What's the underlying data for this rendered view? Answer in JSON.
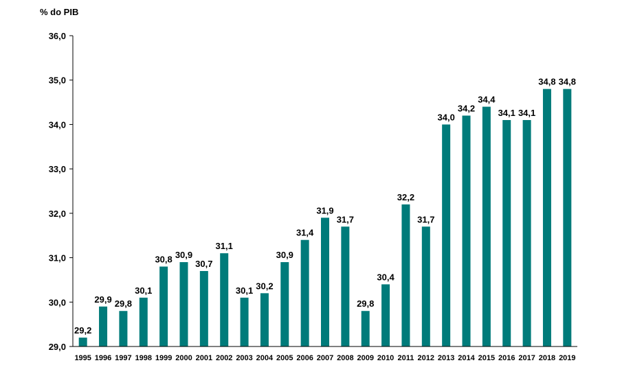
{
  "chart_data": {
    "type": "bar",
    "title": "",
    "xlabel": "",
    "ylabel": "% do PIB",
    "ylim": [
      29.0,
      36.0
    ],
    "yticks": [
      "29,0",
      "30,0",
      "31,0",
      "32,0",
      "33,0",
      "34,0",
      "35,0",
      "36,0"
    ],
    "grid": false,
    "legend": "none",
    "bar_color": "#007B7A",
    "categories": [
      "1995",
      "1996",
      "1997",
      "1998",
      "1999",
      "2000",
      "2001",
      "2002",
      "2003",
      "2004",
      "2005",
      "2006",
      "2007",
      "2008",
      "2009",
      "2010",
      "2011",
      "2012",
      "2013",
      "2014",
      "2015",
      "2016",
      "2017",
      "2018",
      "2019"
    ],
    "values": [
      29.2,
      29.9,
      29.8,
      30.1,
      30.8,
      30.9,
      30.7,
      31.1,
      30.1,
      30.2,
      30.9,
      31.4,
      31.9,
      31.7,
      29.8,
      30.4,
      32.2,
      31.7,
      34.0,
      34.2,
      34.4,
      34.1,
      34.1,
      34.8,
      34.8
    ],
    "data_labels": [
      "29,2",
      "29,9",
      "29,8",
      "30,1",
      "30,8",
      "30,9",
      "30,7",
      "31,1",
      "30,1",
      "30,2",
      "30,9",
      "31,4",
      "31,9",
      "31,7",
      "29,8",
      "30,4",
      "32,2",
      "31,7",
      "34,0",
      "34,2",
      "34,4",
      "34,1",
      "34,1",
      "34,8",
      "34,8"
    ]
  }
}
